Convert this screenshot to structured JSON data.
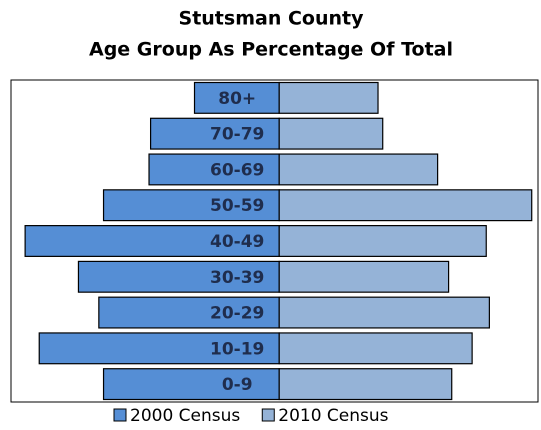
{
  "chart_data": {
    "type": "pyramid",
    "title": [
      "Stutsman County",
      "Age Group As Percentage Of Total"
    ],
    "categories": [
      "0-9",
      "10-19",
      "20-29",
      "30-39",
      "40-49",
      "50-59",
      "60-69",
      "70-79",
      "80+"
    ],
    "series": [
      {
        "name": "2000 Census",
        "color": "#558ed5",
        "side": "left",
        "values": [
          11.2,
          15.3,
          11.5,
          12.8,
          16.2,
          11.2,
          8.3,
          8.2,
          5.4
        ]
      },
      {
        "name": "2010 Census",
        "color": "#95b3d7",
        "side": "right",
        "values": [
          11.0,
          12.3,
          13.4,
          10.8,
          13.2,
          16.1,
          10.1,
          6.6,
          6.3
        ]
      }
    ],
    "xlim": [
      -17.1,
      16.5
    ]
  }
}
